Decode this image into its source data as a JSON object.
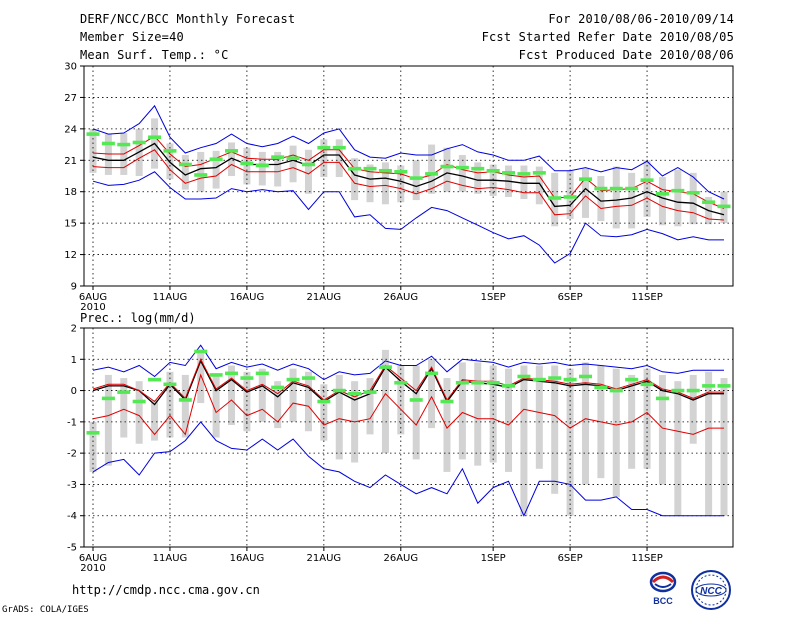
{
  "header": {
    "title": "DERF/NCC/BCC Monthly Forecast",
    "member_size": "Member Size=40",
    "variable": "Mean Surf. Temp.: °C",
    "period": "For 2010/08/06-2010/09/14",
    "started": "Fcst Started Refer Date 2010/08/05",
    "produced": "Fcst Produced Date 2010/08/06"
  },
  "footer": {
    "url": "http://cmdp.ncc.cma.gov.cn",
    "credit": "GrADS: COLA/IGES"
  },
  "logos": {
    "bcc": "BCC",
    "ncc": "NCC"
  },
  "colors": {
    "gray_bar": "#d3d3d3",
    "green": "#55e855",
    "red": "#e00000",
    "blue": "#0000dd",
    "black": "#000000"
  },
  "chart_data": [
    {
      "type": "line",
      "title": "Mean Surf. Temp.: °C",
      "ylim": [
        9,
        30
      ],
      "yticks": [
        "9",
        "12",
        "15",
        "18",
        "21",
        "24",
        "27",
        "30"
      ],
      "x_tick_labels": [
        "6AUG\n2010",
        "11AUG",
        "16AUG",
        "21AUG",
        "26AUG",
        "1SEP",
        "6SEP",
        "11SEP"
      ],
      "x_tick_days": [
        0,
        5,
        10,
        15,
        20,
        26,
        31,
        36
      ],
      "days": 40,
      "series": [
        {
          "name": "ensemble mean",
          "color": "black",
          "values": [
            21.3,
            21.0,
            21.0,
            21.8,
            22.6,
            20.8,
            19.6,
            20.2,
            20.3,
            21.2,
            20.6,
            20.6,
            20.6,
            21.0,
            20.5,
            21.5,
            21.5,
            19.6,
            19.2,
            19.3,
            19.0,
            18.5,
            19.0,
            19.8,
            19.5,
            19.1,
            19.1,
            19.0,
            18.8,
            18.8,
            16.6,
            16.7,
            18.3,
            17.1,
            17.2,
            17.4,
            18.0,
            17.4,
            17.0,
            16.9,
            16.2,
            15.8
          ]
        },
        {
          "name": "upper percentile",
          "color": "red",
          "values": [
            21.7,
            21.6,
            21.6,
            22.4,
            23.3,
            21.6,
            20.4,
            20.6,
            21.2,
            21.8,
            21.2,
            21.1,
            21.1,
            21.5,
            21.0,
            22.0,
            22.0,
            20.2,
            19.9,
            19.8,
            19.7,
            19.2,
            19.6,
            20.6,
            20.1,
            19.8,
            19.9,
            19.6,
            19.4,
            19.5,
            17.4,
            17.5,
            19.3,
            18.1,
            18.2,
            18.3,
            19.0,
            18.2,
            18.0,
            17.8,
            17.0,
            16.4
          ]
        },
        {
          "name": "lower percentile",
          "color": "red",
          "values": [
            20.4,
            20.3,
            20.3,
            21.2,
            22.0,
            20.1,
            18.8,
            19.3,
            19.5,
            20.6,
            19.9,
            19.9,
            19.9,
            20.3,
            19.7,
            20.8,
            20.8,
            18.8,
            18.5,
            18.6,
            18.3,
            17.8,
            18.3,
            19.0,
            18.6,
            18.3,
            18.4,
            18.2,
            17.9,
            17.9,
            15.8,
            15.9,
            17.6,
            16.4,
            16.6,
            16.7,
            17.4,
            16.6,
            16.2,
            16.0,
            15.4,
            15.3
          ]
        },
        {
          "name": "ensemble max",
          "color": "blue",
          "values": [
            24.0,
            23.5,
            23.6,
            24.5,
            26.2,
            23.2,
            21.7,
            22.2,
            22.6,
            23.5,
            22.6,
            22.3,
            22.6,
            23.3,
            22.6,
            23.6,
            24.0,
            22.0,
            21.3,
            21.2,
            21.7,
            21.5,
            21.5,
            22.1,
            22.5,
            21.8,
            21.5,
            21.0,
            21.0,
            21.4,
            20.0,
            20.0,
            20.3,
            19.9,
            20.3,
            20.1,
            20.9,
            19.5,
            20.3,
            19.4,
            18.0,
            17.3
          ]
        },
        {
          "name": "ensemble min",
          "color": "blue",
          "values": [
            19.0,
            18.6,
            18.7,
            19.1,
            19.9,
            18.4,
            17.3,
            17.3,
            17.4,
            18.3,
            18.0,
            18.2,
            18.0,
            18.1,
            16.3,
            18.0,
            18.0,
            15.6,
            15.8,
            14.5,
            14.4,
            15.5,
            16.5,
            16.2,
            15.5,
            14.8,
            14.1,
            13.5,
            13.8,
            12.9,
            11.2,
            12.1,
            15.0,
            13.8,
            13.7,
            13.9,
            14.4,
            14.0,
            13.4,
            13.7,
            13.4,
            13.4
          ]
        }
      ],
      "box_low": [
        19.8,
        19.6,
        19.6,
        19.5,
        20.2,
        19.2,
        18.2,
        18.0,
        18.3,
        19.5,
        18.7,
        18.6,
        18.5,
        18.9,
        17.8,
        19.4,
        19.4,
        17.2,
        17.0,
        16.8,
        17.0,
        17.2,
        17.8,
        18.0,
        18.0,
        17.8,
        17.6,
        17.5,
        17.3,
        16.8,
        14.7,
        15.4,
        15.5,
        15.2,
        14.5,
        14.5,
        15.6,
        14.8,
        14.7,
        14.9,
        14.9,
        15.0
      ],
      "box_high": [
        24.0,
        23.5,
        23.6,
        24.0,
        25.0,
        22.6,
        21.5,
        21.8,
        21.9,
        22.7,
        22.2,
        21.8,
        21.8,
        22.4,
        22.0,
        23.0,
        23.0,
        21.2,
        20.6,
        20.8,
        20.5,
        21.0,
        22.5,
        22.2,
        21.5,
        20.8,
        20.6,
        20.5,
        20.5,
        20.4,
        19.8,
        20.0,
        20.2,
        19.5,
        20.4,
        19.8,
        21.0,
        19.4,
        20.1,
        19.8,
        17.5,
        18.0
      ],
      "green_marks": [
        23.5,
        22.6,
        22.5,
        22.7,
        23.2,
        21.9,
        20.6,
        19.6,
        21.1,
        21.9,
        20.7,
        20.5,
        21.3,
        21.2,
        20.6,
        22.2,
        22.2,
        20.2,
        20.2,
        20.0,
        19.9,
        19.3,
        19.7,
        20.4,
        20.3,
        20.2,
        20.0,
        19.8,
        19.7,
        19.8,
        17.4,
        17.5,
        19.2,
        18.3,
        18.3,
        18.3,
        19.1,
        17.8,
        18.1,
        17.9,
        17.0,
        16.6
      ]
    },
    {
      "type": "line",
      "title": "Prec.: log(mm/d)",
      "ylim": [
        -5,
        2
      ],
      "yticks": [
        "-5",
        "-4",
        "-3",
        "-2",
        "-1",
        "0",
        "1",
        "2"
      ],
      "x_tick_labels": [
        "6AUG\n2010",
        "11AUG",
        "16AUG",
        "21AUG",
        "26AUG",
        "1SEP",
        "6SEP",
        "11SEP"
      ],
      "x_tick_days": [
        0,
        5,
        10,
        15,
        20,
        26,
        31,
        36
      ],
      "days": 40,
      "series": [
        {
          "name": "ensemble mean",
          "color": "black",
          "values": [
            0.0,
            0.15,
            0.15,
            0.0,
            -0.45,
            0.2,
            -0.3,
            0.95,
            0.0,
            0.35,
            -0.05,
            0.15,
            -0.2,
            0.25,
            0.1,
            -0.35,
            -0.05,
            -0.3,
            -0.1,
            0.75,
            0.3,
            -0.1,
            0.7,
            -0.35,
            0.3,
            0.25,
            0.2,
            0.1,
            0.35,
            0.3,
            0.25,
            0.15,
            0.2,
            0.15,
            0.0,
            0.15,
            0.3,
            0.0,
            -0.1,
            -0.3,
            -0.1,
            -0.1
          ]
        },
        {
          "name": "upper percentile",
          "color": "red",
          "values": [
            0.05,
            0.2,
            0.2,
            0.0,
            -0.35,
            0.25,
            -0.25,
            1.0,
            0.05,
            0.4,
            0.0,
            0.2,
            -0.1,
            0.3,
            0.15,
            -0.3,
            0.0,
            -0.2,
            0.0,
            0.8,
            0.4,
            0.0,
            0.75,
            -0.3,
            0.35,
            0.3,
            0.3,
            0.15,
            0.4,
            0.35,
            0.3,
            0.2,
            0.25,
            0.2,
            0.05,
            0.2,
            0.35,
            0.05,
            -0.05,
            -0.25,
            -0.05,
            -0.05
          ]
        },
        {
          "name": "lower percentile",
          "color": "red",
          "values": [
            -0.9,
            -0.8,
            -0.6,
            -0.8,
            -1.4,
            -0.8,
            -1.4,
            0.5,
            -0.7,
            -0.3,
            -0.8,
            -0.6,
            -1.0,
            -0.4,
            -0.5,
            -1.1,
            -0.9,
            -1.0,
            -0.9,
            -0.1,
            -0.6,
            -1.1,
            -0.2,
            -1.2,
            -0.7,
            -0.9,
            -0.9,
            -1.1,
            -0.6,
            -0.7,
            -0.8,
            -1.2,
            -0.9,
            -1.0,
            -1.1,
            -1.0,
            -0.7,
            -1.2,
            -1.3,
            -1.4,
            -1.2,
            -1.2
          ]
        },
        {
          "name": "ensemble max",
          "color": "blue",
          "values": [
            0.65,
            0.75,
            0.6,
            0.8,
            0.45,
            0.9,
            0.8,
            1.45,
            0.7,
            0.9,
            0.75,
            0.85,
            0.65,
            0.85,
            0.7,
            0.35,
            0.6,
            0.5,
            0.55,
            0.95,
            0.8,
            0.8,
            1.1,
            0.6,
            1.0,
            0.95,
            0.9,
            0.75,
            0.9,
            0.85,
            0.9,
            0.8,
            0.85,
            0.8,
            0.75,
            0.7,
            0.8,
            0.6,
            0.55,
            0.65,
            0.65,
            0.65
          ]
        },
        {
          "name": "ensemble min",
          "color": "blue",
          "values": [
            -2.6,
            -2.3,
            -2.2,
            -2.7,
            -2.0,
            -1.95,
            -1.6,
            -1.0,
            -1.6,
            -1.85,
            -1.9,
            -1.55,
            -1.9,
            -1.55,
            -2.1,
            -2.5,
            -2.6,
            -2.9,
            -3.1,
            -2.7,
            -3.0,
            -3.3,
            -3.1,
            -3.3,
            -2.5,
            -3.6,
            -3.1,
            -2.9,
            -4.0,
            -2.9,
            -2.9,
            -3.0,
            -3.5,
            -3.5,
            -3.4,
            -3.8,
            -3.8,
            -4.0,
            -4.0,
            -4.0,
            -4.0,
            -4.0
          ]
        },
        {
          "name": "control",
          "color": "green",
          "values": []
        }
      ],
      "box_low": [
        -2.6,
        -2.4,
        -1.5,
        -1.7,
        -1.6,
        -1.5,
        -1.5,
        -0.4,
        -1.5,
        -1.1,
        -1.3,
        -1.0,
        -1.2,
        -1.0,
        -1.3,
        -1.6,
        -2.2,
        -2.3,
        -1.4,
        -2.0,
        -1.4,
        -2.2,
        -1.2,
        -2.6,
        -2.2,
        -2.4,
        -2.3,
        -2.6,
        -4.0,
        -2.5,
        -3.3,
        -4.0,
        -3.0,
        -2.8,
        -3.4,
        -2.5,
        -2.5,
        -3.0,
        -4.0,
        -1.7,
        -4.0,
        -4.0
      ],
      "box_high": [
        -1.0,
        0.5,
        0.4,
        0.3,
        -0.3,
        0.6,
        0.5,
        1.3,
        0.5,
        0.8,
        0.6,
        0.7,
        0.3,
        0.7,
        0.6,
        0.2,
        0.5,
        0.3,
        0.4,
        1.3,
        0.8,
        0.8,
        1.0,
        0.4,
        0.9,
        0.9,
        0.8,
        0.7,
        0.8,
        0.8,
        0.8,
        0.7,
        0.9,
        0.8,
        0.7,
        0.5,
        0.7,
        0.5,
        0.3,
        0.5,
        0.6,
        0.4
      ],
      "green_marks": [
        -1.35,
        -0.25,
        -0.05,
        -0.35,
        0.35,
        0.2,
        -0.3,
        1.25,
        0.5,
        0.55,
        0.4,
        0.55,
        0.1,
        0.35,
        0.4,
        -0.35,
        0.0,
        -0.1,
        -0.05,
        0.75,
        0.25,
        -0.3,
        0.55,
        -0.35,
        0.25,
        0.25,
        0.25,
        0.15,
        0.45,
        0.35,
        0.4,
        0.35,
        0.45,
        0.1,
        0.0,
        0.35,
        0.2,
        -0.25,
        0.0,
        0.0,
        0.15,
        0.15
      ]
    }
  ]
}
